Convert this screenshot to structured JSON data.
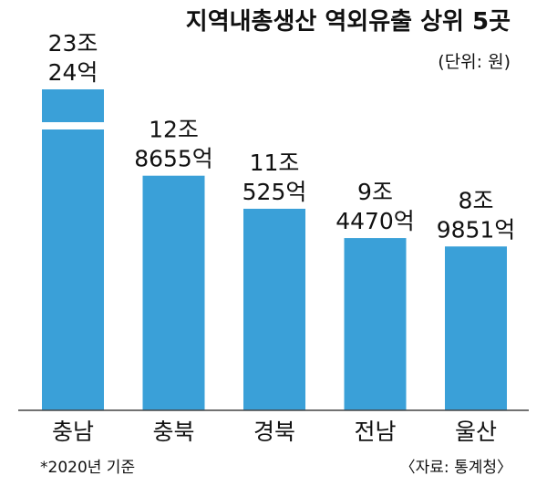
{
  "title": "지역내총생산 역외유출 상위 5곳",
  "unit_label": "(단위: 원)",
  "footnote": "*2020년 기준",
  "source": "〈자료: 통계청〉",
  "colors": {
    "bar": "#3aa0d8",
    "text": "#111111",
    "axis": "#444444"
  },
  "chart_data": {
    "type": "bar",
    "categories": [
      "충남",
      "충북",
      "경북",
      "전남",
      "울산"
    ],
    "values": [
      230024,
      128655,
      110525,
      94470,
      89851
    ],
    "value_unit": "억원",
    "labels": [
      [
        "23조",
        "24억"
      ],
      [
        "12조",
        "8655억"
      ],
      [
        "11조",
        "525억"
      ],
      [
        "9조",
        "4470억"
      ],
      [
        "8조",
        "9851억"
      ]
    ],
    "axis_break_on": "충남",
    "title": "지역내총생산 역외유출 상위 5곳",
    "xlabel": "",
    "ylabel": ""
  }
}
